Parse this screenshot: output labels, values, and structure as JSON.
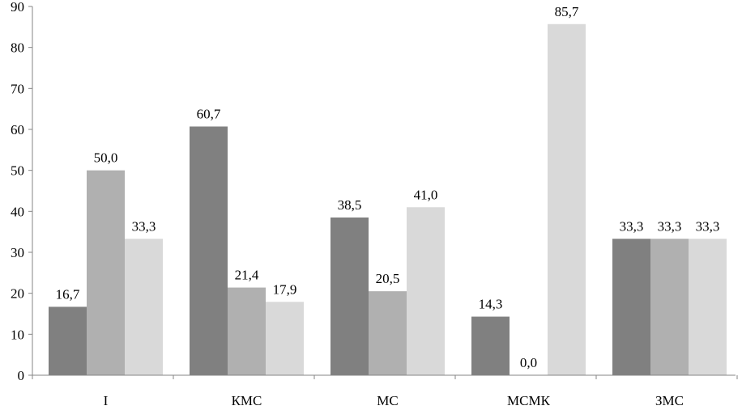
{
  "chart_data": {
    "type": "bar",
    "categories": [
      "I",
      "КМС",
      "МС",
      "МСМК",
      "ЗМС"
    ],
    "series": [
      {
        "values": [
          16.7,
          60.7,
          38.5,
          14.3,
          33.3
        ],
        "color": "#808080"
      },
      {
        "values": [
          50.0,
          21.4,
          20.5,
          0.0,
          33.3
        ],
        "color": "#b0b0b0"
      },
      {
        "values": [
          33.3,
          17.9,
          41.0,
          85.7,
          33.3
        ],
        "color": "#d9d9d9"
      }
    ],
    "value_labels": [
      [
        "16,7",
        "60,7",
        "38,5",
        "14,3",
        "33,3"
      ],
      [
        "50,0",
        "21,4",
        "20,5",
        "0,0",
        "33,3"
      ],
      [
        "33,3",
        "17,9",
        "41,0",
        "85,7",
        "33,3"
      ]
    ],
    "ylim": [
      0,
      90
    ],
    "yticks": [
      0,
      10,
      20,
      30,
      40,
      50,
      60,
      70,
      80,
      90
    ],
    "grid": false,
    "legend": "none",
    "title": "",
    "xlabel": "",
    "ylabel": ""
  }
}
